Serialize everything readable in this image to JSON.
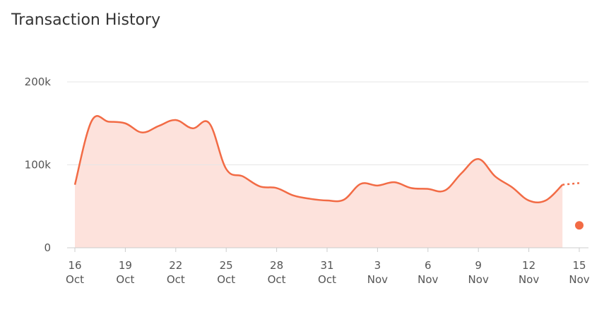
{
  "title": "Transaction History",
  "colors": {
    "line": "#f26b45",
    "area": "#fde2dc",
    "grid": "#e6e6e6",
    "axis": "#cccccc",
    "marker": "#f26b45"
  },
  "chart_data": {
    "type": "area",
    "title": "Transaction History",
    "xlabel": "",
    "ylabel": "",
    "ylim": [
      0,
      200000
    ],
    "yticks": [
      {
        "value": 0,
        "label": "0"
      },
      {
        "value": 100000,
        "label": "100k"
      },
      {
        "value": 200000,
        "label": "200k"
      }
    ],
    "xticks": [
      {
        "day": "16",
        "month": "Oct"
      },
      {
        "day": "19",
        "month": "Oct"
      },
      {
        "day": "22",
        "month": "Oct"
      },
      {
        "day": "25",
        "month": "Oct"
      },
      {
        "day": "28",
        "month": "Oct"
      },
      {
        "day": "31",
        "month": "Oct"
      },
      {
        "day": "3",
        "month": "Nov"
      },
      {
        "day": "6",
        "month": "Nov"
      },
      {
        "day": "9",
        "month": "Nov"
      },
      {
        "day": "12",
        "month": "Nov"
      },
      {
        "day": "15",
        "month": "Nov"
      }
    ],
    "grid": true,
    "series": [
      {
        "points": [
          {
            "date": "2023-10-16",
            "value": 76000
          },
          {
            "date": "2023-10-17",
            "value": 153000
          },
          {
            "date": "2023-10-18",
            "value": 152000
          },
          {
            "date": "2023-10-19",
            "value": 150000
          },
          {
            "date": "2023-10-20",
            "value": 139000
          },
          {
            "date": "2023-10-21",
            "value": 147000
          },
          {
            "date": "2023-10-22",
            "value": 154000
          },
          {
            "date": "2023-10-23",
            "value": 144000
          },
          {
            "date": "2023-10-24",
            "value": 150000
          },
          {
            "date": "2023-10-25",
            "value": 95000
          },
          {
            "date": "2023-10-26",
            "value": 86000
          },
          {
            "date": "2023-10-27",
            "value": 74000
          },
          {
            "date": "2023-10-28",
            "value": 72000
          },
          {
            "date": "2023-10-29",
            "value": 63000
          },
          {
            "date": "2023-10-30",
            "value": 59000
          },
          {
            "date": "2023-10-31",
            "value": 57000
          },
          {
            "date": "2023-11-01",
            "value": 58000
          },
          {
            "date": "2023-11-02",
            "value": 77000
          },
          {
            "date": "2023-11-03",
            "value": 75000
          },
          {
            "date": "2023-11-04",
            "value": 79000
          },
          {
            "date": "2023-11-05",
            "value": 72000
          },
          {
            "date": "2023-11-06",
            "value": 71000
          },
          {
            "date": "2023-11-07",
            "value": 69000
          },
          {
            "date": "2023-11-08",
            "value": 90000
          },
          {
            "date": "2023-11-09",
            "value": 107000
          },
          {
            "date": "2023-11-10",
            "value": 86000
          },
          {
            "date": "2023-11-11",
            "value": 73000
          },
          {
            "date": "2023-11-12",
            "value": 57000
          },
          {
            "date": "2023-11-13",
            "value": 57000
          },
          {
            "date": "2023-11-14",
            "value": 76000
          }
        ],
        "projected": [
          {
            "date": "2023-11-14",
            "value": 76000
          },
          {
            "date": "2023-11-15",
            "value": 78000
          }
        ],
        "marker": {
          "date": "2023-11-15",
          "value": 27000
        }
      }
    ]
  }
}
